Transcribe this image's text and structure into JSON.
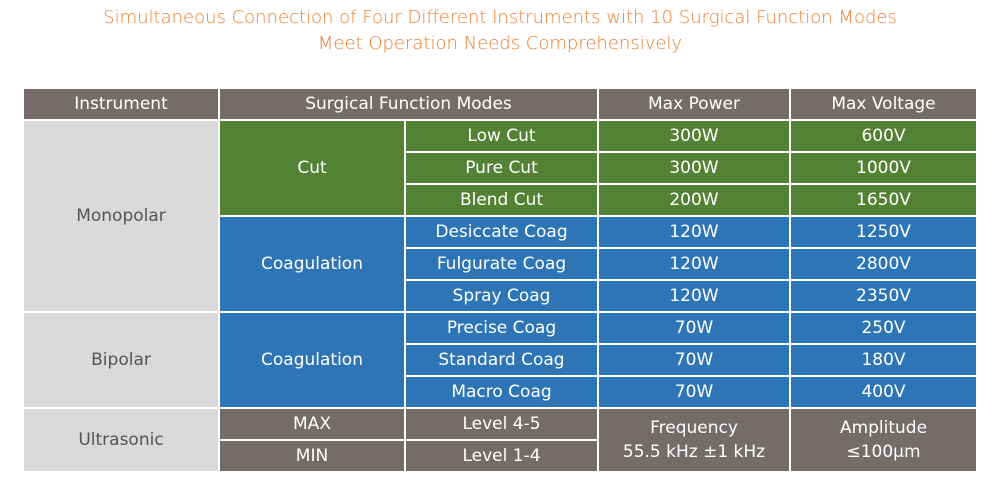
{
  "title": {
    "line1": "Simultaneous Connection of Four Different Instruments with 10 Surgical Function Modes",
    "line2": "Meet Operation Needs Comprehensively"
  },
  "table": {
    "headers": [
      "Instrument",
      "Surgical Function Modes",
      "Max Power",
      "Max Voltage"
    ],
    "monopolar": {
      "instrument": "Monopolar",
      "cut": {
        "group": "Cut",
        "rows": [
          {
            "mode": "Low Cut",
            "power": "300W",
            "voltage": "600V"
          },
          {
            "mode": "Pure Cut",
            "power": "300W",
            "voltage": "1000V"
          },
          {
            "mode": "Blend Cut",
            "power": "200W",
            "voltage": "1650V"
          }
        ]
      },
      "coag": {
        "group": "Coagulation",
        "rows": [
          {
            "mode": "Desiccate Coag",
            "power": "120W",
            "voltage": "1250V"
          },
          {
            "mode": "Fulgurate Coag",
            "power": "120W",
            "voltage": "2800V"
          },
          {
            "mode": "Spray Coag",
            "power": "120W",
            "voltage": "2350V"
          }
        ]
      }
    },
    "bipolar": {
      "instrument": "Bipolar",
      "group": "Coagulation",
      "rows": [
        {
          "mode": "Precise Coag",
          "power": "70W",
          "voltage": "250V"
        },
        {
          "mode": "Standard Coag",
          "power": "70W",
          "voltage": "180V"
        },
        {
          "mode": "Macro Coag",
          "power": "70W",
          "voltage": "400V"
        }
      ]
    },
    "ultrasonic": {
      "instrument": "Ultrasonic",
      "rows": [
        {
          "setting": "MAX",
          "level": "Level 4-5"
        },
        {
          "setting": "MIN",
          "level": "Level 1-4"
        }
      ],
      "frequency_label": "Frequency",
      "frequency_value": "55.5 kHz ±1 kHz",
      "amplitude_label": "Amplitude",
      "amplitude_value": "≤100μm"
    }
  }
}
